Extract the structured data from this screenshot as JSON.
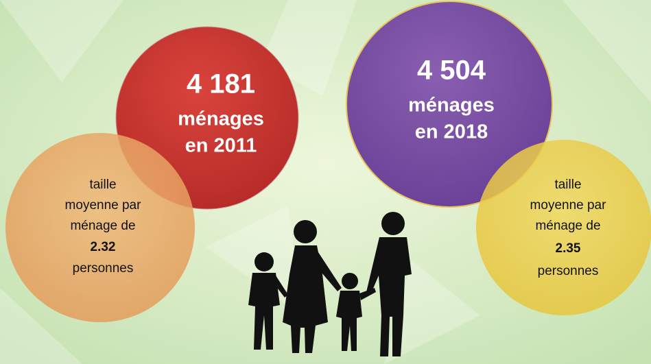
{
  "circles": [
    {
      "number": "4 181",
      "label": "ménages",
      "year": "en 2011"
    },
    {
      "number": "4 504",
      "label": "ménages",
      "year": "en 2018"
    }
  ],
  "bubbles": [
    {
      "lines": [
        "taille",
        "moyenne par",
        "ménage de"
      ],
      "value": "2.32",
      "unit": "personnes"
    },
    {
      "lines": [
        "taille",
        "moyenne par",
        "ménage de"
      ],
      "value": "2.35",
      "unit": "personnes"
    }
  ]
}
